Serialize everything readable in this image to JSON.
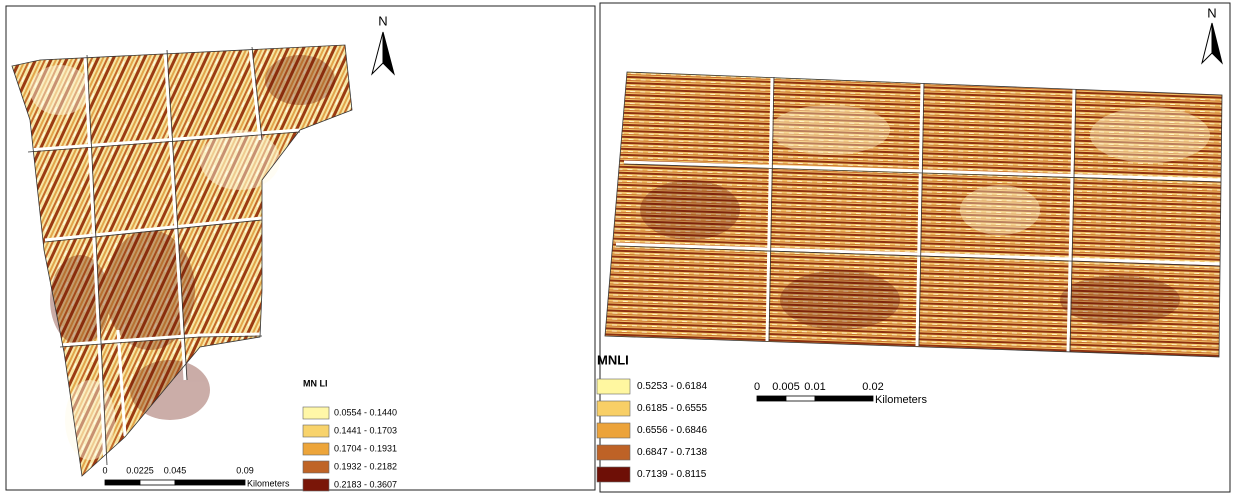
{
  "maps": [
    {
      "north_label": "N",
      "legend": {
        "title": "MN LI",
        "classes": [
          {
            "label": "0.0554 - 0.1440",
            "color": "#fff7a8"
          },
          {
            "label": "0.1441 - 0.1703",
            "color": "#f8d36c"
          },
          {
            "label": "0.1704 - 0.1931",
            "color": "#eda53a"
          },
          {
            "label": "0.1932 - 0.2182",
            "color": "#bf6426"
          },
          {
            "label": "0.2183 - 0.3607",
            "color": "#7a1608"
          }
        ]
      },
      "scale_bar": {
        "ticks": [
          "0",
          "0.0225",
          "0.045",
          "0.09"
        ],
        "unit": "Kilometers"
      }
    },
    {
      "north_label": "N",
      "legend": {
        "title": "MNLI",
        "classes": [
          {
            "label": "0.5253 - 0.6184",
            "color": "#fff7a0"
          },
          {
            "label": "0.6185 - 0.6555",
            "color": "#f8cf66"
          },
          {
            "label": "0.6556 - 0.6846",
            "color": "#eca33a"
          },
          {
            "label": "0.6847 - 0.7138",
            "color": "#be6226"
          },
          {
            "label": "0.7139 - 0.8115",
            "color": "#6e0f06"
          }
        ]
      },
      "scale_bar": {
        "ticks": [
          "0",
          "0.005",
          "0.01",
          "0.02"
        ],
        "unit": "Kilometers"
      }
    }
  ]
}
